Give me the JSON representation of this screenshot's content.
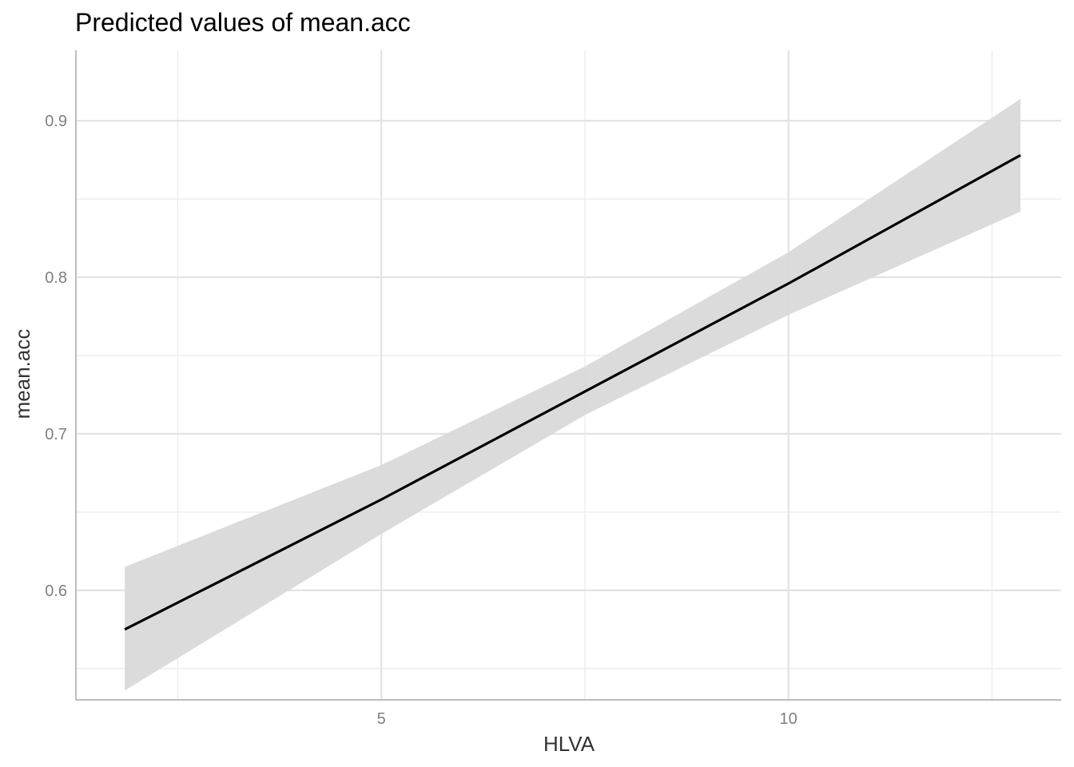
{
  "chart_data": {
    "type": "line",
    "title": "Predicted values of mean.acc",
    "xlabel": "HLVA",
    "ylabel": "mean.acc",
    "xlim": [
      1.25,
      13.35
    ],
    "ylim": [
      0.53,
      0.945
    ],
    "x_ticks": [
      5,
      10
    ],
    "x_tick_labels": [
      "5",
      "10"
    ],
    "x_minor_ticks": [
      2.5,
      7.5,
      12.5
    ],
    "y_ticks": [
      0.6,
      0.7,
      0.8,
      0.9
    ],
    "y_tick_labels": [
      "0.6",
      "0.7",
      "0.8",
      "0.9"
    ],
    "y_minor_ticks": [
      0.55,
      0.65,
      0.75,
      0.85
    ],
    "grid": true,
    "series": [
      {
        "x": [
          1.85,
          5.0,
          7.5,
          10.0,
          12.85
        ],
        "y": [
          0.575,
          0.658,
          0.727,
          0.796,
          0.878
        ],
        "ci_lower": [
          0.536,
          0.636,
          0.712,
          0.776,
          0.842
        ],
        "ci_upper": [
          0.615,
          0.68,
          0.743,
          0.816,
          0.914
        ],
        "line_color": "#000000",
        "band_color": "#d9d9d9"
      }
    ]
  }
}
